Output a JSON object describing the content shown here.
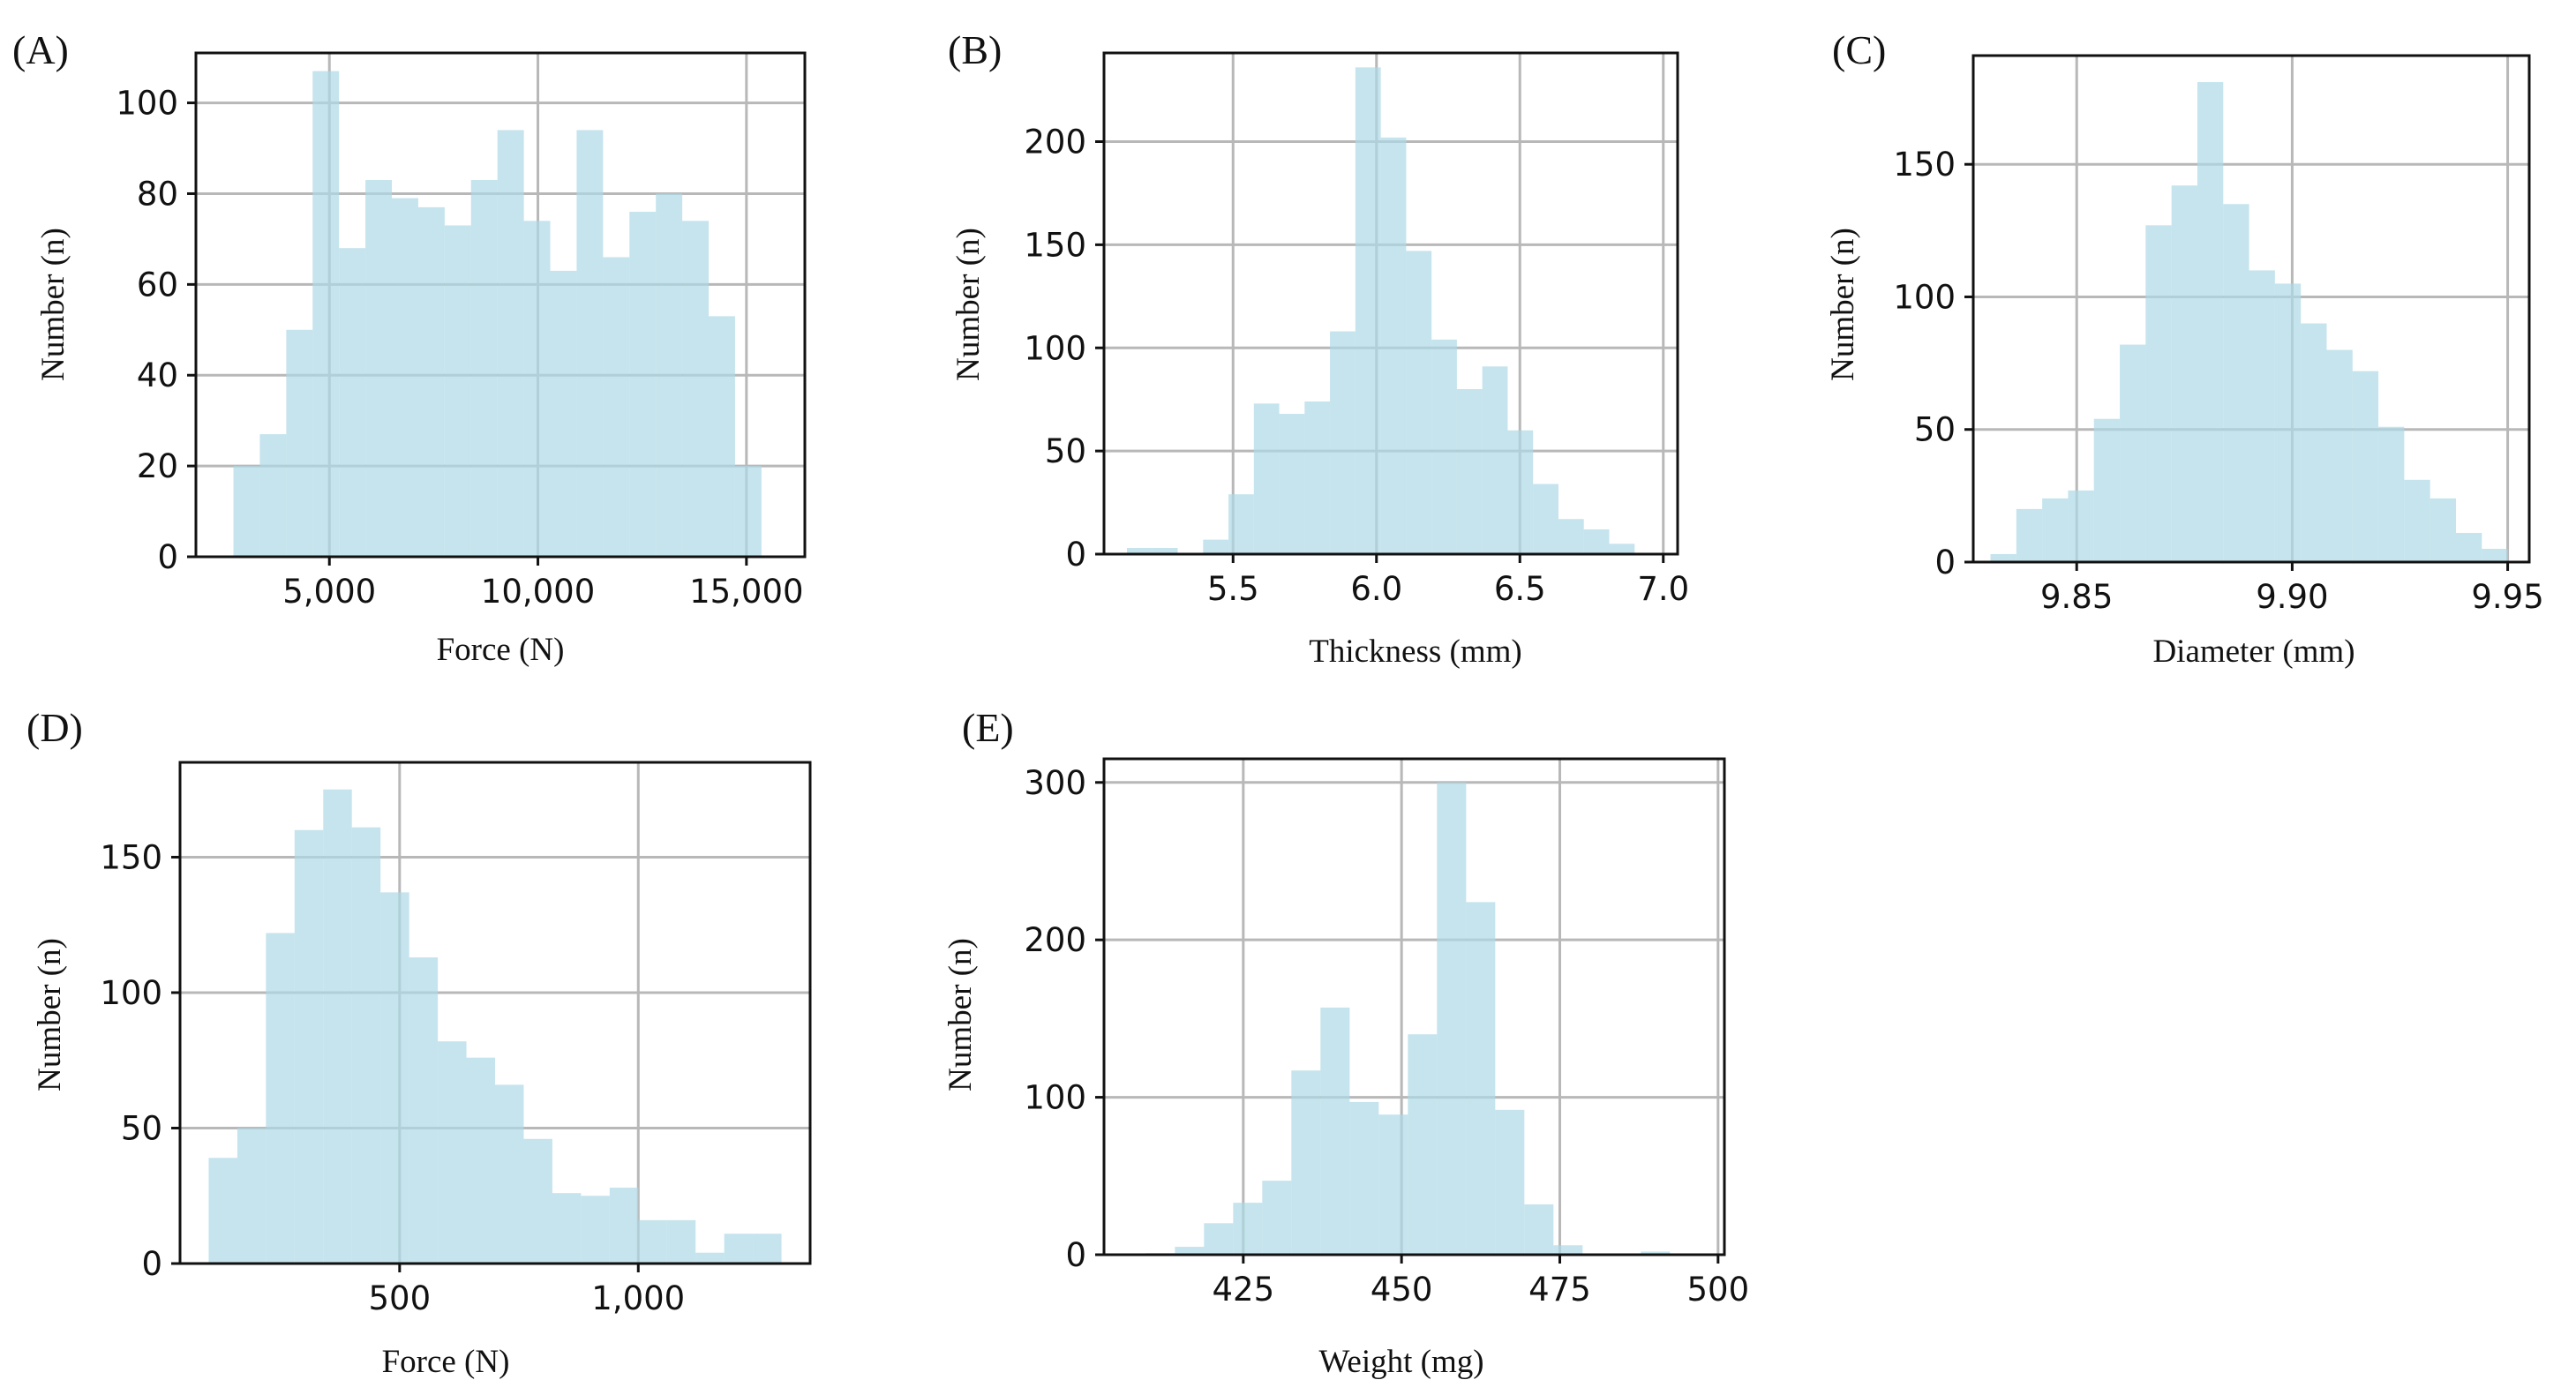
{
  "chart_data": [
    {
      "id": "A",
      "panel_label": "(A)",
      "type": "bar",
      "title": "",
      "xlabel": "Force (N)",
      "ylabel": "Number (n)",
      "xlim": [
        1800,
        16400
      ],
      "ylim": [
        0,
        111
      ],
      "grid": true,
      "xticks": [
        5000,
        10000,
        15000
      ],
      "xtick_labels": [
        "5,000",
        "10,000",
        "15,000"
      ],
      "yticks": [
        0,
        20,
        40,
        60,
        80,
        100
      ],
      "ytick_labels": [
        "0",
        "20",
        "40",
        "60",
        "80",
        "100"
      ],
      "bin_start": 2700,
      "bin_width": 633,
      "values": [
        20,
        27,
        50,
        107,
        68,
        83,
        79,
        77,
        73,
        83,
        94,
        74,
        63,
        94,
        66,
        76,
        80,
        74,
        53,
        20
      ]
    },
    {
      "id": "B",
      "panel_label": "(B)",
      "type": "bar",
      "title": "",
      "xlabel": "Thickness (mm)",
      "ylabel": "Number (n)",
      "xlim": [
        5.05,
        7.05
      ],
      "ylim": [
        0,
        243
      ],
      "grid": true,
      "xticks": [
        5.5,
        6.0,
        6.5,
        7.0
      ],
      "xtick_labels": [
        "5.5",
        "6.0",
        "6.5",
        "7.0"
      ],
      "yticks": [
        0,
        50,
        100,
        150,
        200
      ],
      "ytick_labels": [
        "0",
        "50",
        "100",
        "150",
        "200"
      ],
      "bin_start": 5.13,
      "bin_width": 0.0885,
      "values": [
        3,
        3,
        0,
        7,
        29,
        73,
        68,
        74,
        108,
        236,
        202,
        147,
        104,
        80,
        91,
        60,
        34,
        17,
        12,
        5
      ]
    },
    {
      "id": "C",
      "panel_label": "(C)",
      "type": "bar",
      "title": "",
      "xlabel": "Diameter (mm)",
      "ylabel": "Number (n)",
      "xlim": [
        9.826,
        9.955
      ],
      "ylim": [
        0,
        191
      ],
      "grid": true,
      "xticks": [
        9.85,
        9.9,
        9.95
      ],
      "xtick_labels": [
        "9.85",
        "9.90",
        "9.95"
      ],
      "yticks": [
        0,
        50,
        100,
        150
      ],
      "ytick_labels": [
        "0",
        "50",
        "100",
        "150"
      ],
      "bin_start": 9.83,
      "bin_width": 0.006,
      "values": [
        3,
        20,
        24,
        27,
        54,
        82,
        127,
        142,
        181,
        135,
        110,
        105,
        90,
        80,
        72,
        51,
        31,
        24,
        11,
        5
      ]
    },
    {
      "id": "D",
      "panel_label": "(D)",
      "type": "bar",
      "title": "",
      "xlabel": "Force (N)",
      "ylabel": "Number (n)",
      "xlim": [
        40,
        1360
      ],
      "ylim": [
        0,
        185
      ],
      "grid": true,
      "xticks": [
        500,
        1000
      ],
      "xtick_labels": [
        "500",
        "1,000"
      ],
      "yticks": [
        0,
        50,
        100,
        150
      ],
      "ytick_labels": [
        "0",
        "50",
        "100",
        "150"
      ],
      "bin_start": 100,
      "bin_width": 60,
      "values": [
        39,
        50,
        122,
        160,
        175,
        161,
        137,
        113,
        82,
        76,
        66,
        46,
        26,
        25,
        28,
        16,
        16,
        4,
        11,
        11
      ]
    },
    {
      "id": "E",
      "panel_label": "(E)",
      "type": "bar",
      "title": "",
      "xlabel": "Weight (mg)",
      "ylabel": "Number (n)",
      "xlim": [
        403,
        501
      ],
      "ylim": [
        0,
        315
      ],
      "grid": true,
      "xticks": [
        425,
        450,
        475,
        500
      ],
      "xtick_labels": [
        "425",
        "450",
        "475",
        "500"
      ],
      "yticks": [
        0,
        100,
        200,
        300
      ],
      "ytick_labels": [
        "0",
        "100",
        "200",
        "300"
      ],
      "bin_start": 405,
      "bin_width": 4.6,
      "values": [
        0,
        1,
        5,
        20,
        33,
        47,
        117,
        157,
        97,
        89,
        140,
        300,
        224,
        92,
        32,
        6,
        0,
        0,
        2,
        0
      ]
    }
  ]
}
